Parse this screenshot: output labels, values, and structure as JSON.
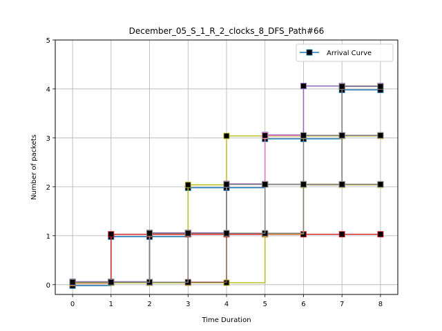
{
  "chart_data": {
    "type": "line",
    "title": "December_05_S_1_R_2_clocks_8_DFS_Path#66",
    "xlabel": "Time Duration",
    "ylabel": "Number of packets",
    "xlim": [
      -0.45,
      8.45
    ],
    "ylim": [
      -0.2,
      5
    ],
    "xticks": [
      "0",
      "1",
      "2",
      "3",
      "4",
      "5",
      "6",
      "7",
      "8"
    ],
    "yticks": [
      "0",
      "1",
      "2",
      "3",
      "4",
      "5"
    ],
    "grid": true,
    "legend": {
      "placement": "top-right",
      "entries": [
        "Arrival Curve"
      ]
    },
    "step": "post",
    "series": [
      {
        "name": "Arrival Curve",
        "color": "#1f77b4",
        "offset": -0.02,
        "x": [
          0,
          1,
          2,
          3,
          4,
          5,
          6,
          7,
          8
        ],
        "y": [
          0,
          1,
          1,
          2,
          2,
          3,
          3,
          4,
          4
        ]
      },
      {
        "color": "#d62728",
        "offset": 0.03,
        "x": [
          0,
          1,
          2,
          3,
          4,
          5,
          6,
          7,
          8
        ],
        "y": [
          0,
          1,
          1,
          1,
          1,
          1,
          1,
          1,
          1
        ]
      },
      {
        "color": "#bcbd22",
        "offset": 0.04,
        "x": [
          0,
          1,
          2,
          3,
          4,
          5,
          6,
          7,
          8
        ],
        "y": [
          0,
          0,
          0,
          2,
          3,
          3,
          3,
          3,
          3
        ]
      },
      {
        "color": "#bcbd22",
        "offset": 0.04,
        "x": [
          0,
          1,
          2,
          3,
          4,
          5,
          6,
          7,
          8
        ],
        "y": [
          0,
          0,
          0,
          0,
          0,
          1,
          2,
          2,
          2
        ]
      },
      {
        "color": "#9467bd",
        "offset": 0.06,
        "x": [
          0,
          1,
          2,
          3,
          4,
          5,
          6,
          7,
          8
        ],
        "y": [
          0,
          0,
          1,
          1,
          2,
          3,
          4,
          4,
          4
        ]
      },
      {
        "color": "#e377c2",
        "offset": 0.05,
        "x": [
          0,
          1,
          2,
          3,
          4,
          5,
          6,
          7,
          8
        ],
        "y": [
          0,
          0,
          0,
          1,
          2,
          3,
          3,
          3,
          3
        ]
      },
      {
        "color": "#8c564b",
        "offset": 0.05,
        "x": [
          0,
          1,
          2,
          3,
          4,
          5,
          6,
          7,
          8
        ],
        "y": [
          0,
          0,
          0,
          1,
          1,
          2,
          2,
          2,
          2
        ]
      },
      {
        "color": "#8c564b",
        "offset": 0.05,
        "x": [
          0,
          1,
          2,
          3,
          4,
          5,
          6,
          7,
          8
        ],
        "y": [
          0,
          0,
          0,
          0,
          1,
          2,
          2,
          3,
          3
        ]
      },
      {
        "color": "#7f7f7f",
        "offset": 0.05,
        "x": [
          0,
          1,
          2,
          3,
          4,
          5,
          6,
          7,
          8
        ],
        "y": [
          0,
          0,
          1,
          1,
          2,
          2,
          3,
          4,
          4
        ]
      },
      {
        "color": "#7f7f7f",
        "offset": 0.05,
        "x": [
          0,
          1,
          2,
          3,
          4,
          5,
          6,
          7,
          8
        ],
        "y": [
          0,
          0,
          0,
          1,
          1,
          1,
          2,
          3,
          3
        ]
      },
      {
        "color": "#7f7f7f",
        "offset": 0.05,
        "x": [
          0,
          1,
          2,
          3,
          4,
          5,
          6,
          7,
          8
        ],
        "y": [
          0,
          0,
          1,
          1,
          1,
          2,
          2,
          2,
          2
        ]
      }
    ]
  }
}
